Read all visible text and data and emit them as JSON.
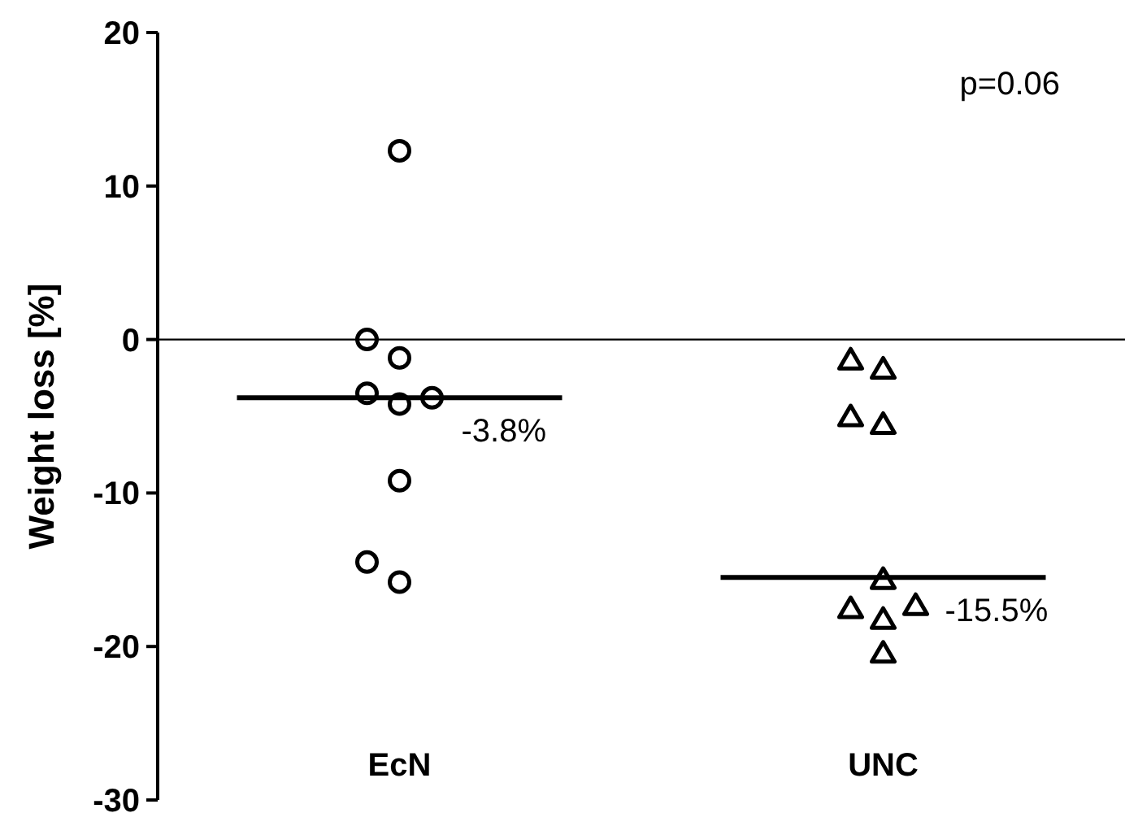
{
  "chart_data": {
    "type": "scatter",
    "ylabel": "Weight loss [%]",
    "categories": [
      "EcN",
      "UNC"
    ],
    "ylim": [
      -30,
      20
    ],
    "yticks": [
      -30,
      -20,
      -10,
      0,
      10,
      20
    ],
    "series": [
      {
        "marker": "circle",
        "color": "#000000",
        "x": [
          "EcN",
          "EcN",
          "EcN",
          "EcN",
          "EcN",
          "EcN",
          "EcN",
          "EcN",
          "EcN"
        ],
        "values": [
          12.3,
          -1.2,
          0,
          -4.2,
          -3.5,
          -3.8,
          -9.2,
          -15.8,
          -14.5
        ]
      },
      {
        "marker": "triangle",
        "color": "#000000",
        "x": [
          "UNC",
          "UNC",
          "UNC",
          "UNC",
          "UNC",
          "UNC",
          "UNC",
          "UNC",
          "UNC"
        ],
        "values": [
          -1.9,
          -1.3,
          -5.5,
          -5.0,
          -15.6,
          -18.2,
          -17.5,
          -17.3,
          -20.4
        ]
      }
    ],
    "ref_lines": [
      {
        "axis": "y",
        "value": 0,
        "color": "#000000"
      }
    ],
    "annotations": [
      {
        "text": "-3.8%",
        "x": "EcN",
        "y": -3.8
      },
      {
        "text": "-15.5%",
        "x": "UNC",
        "y": -15.5
      },
      "p=0.06"
    ]
  }
}
